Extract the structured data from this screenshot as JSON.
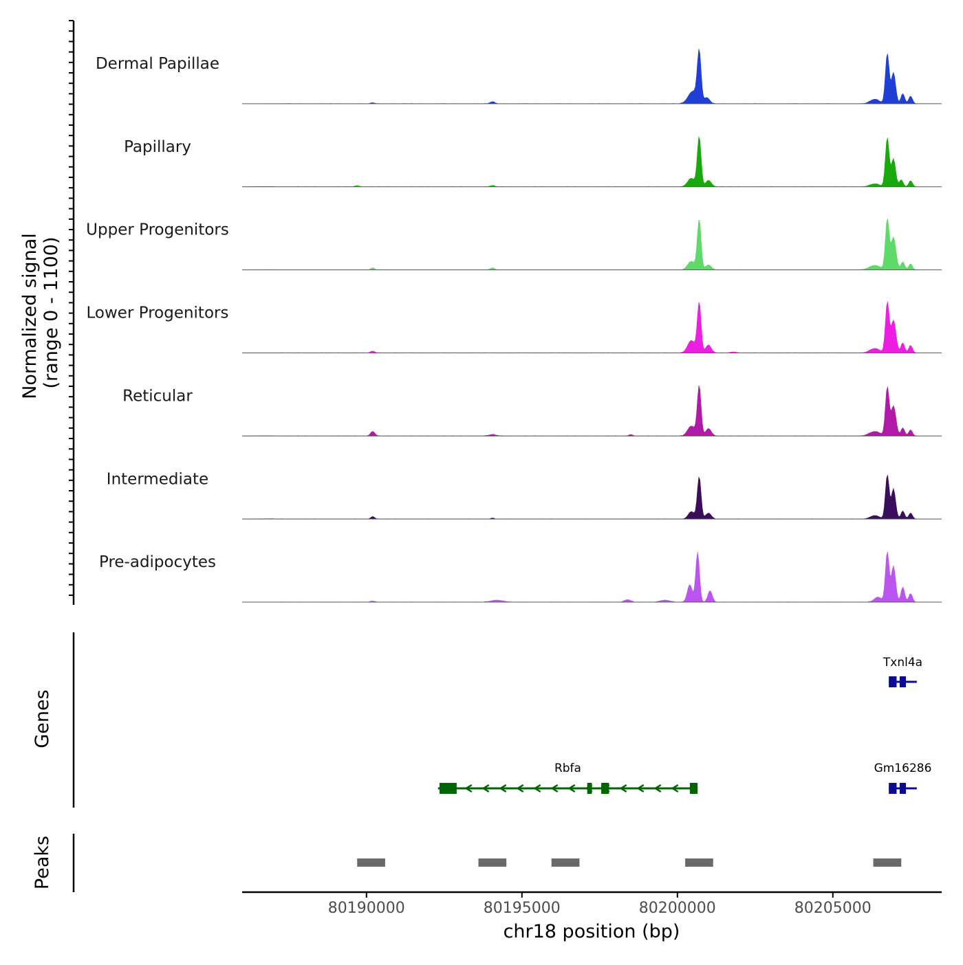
{
  "chart_data": {
    "type": "area",
    "title": "",
    "chromosome": "chr18",
    "xlabel": "chr18 position (bp)",
    "ylabel_line1": "Normalized signal",
    "ylabel_line2": "(range 0 - 1100)",
    "xlim": [
      80186000,
      80208500
    ],
    "ylim": [
      0,
      1100
    ],
    "x_ticks": [
      80190000,
      80195000,
      80200000,
      80205000
    ],
    "x_tick_labels": [
      "80190000",
      "80195000",
      "80200000",
      "80205000"
    ],
    "series": [
      {
        "name": "Dermal Papillae",
        "color": "#1f3fd6",
        "peaks": [
          [
            80200700,
            1000,
            60
          ],
          [
            80200500,
            250,
            150
          ],
          [
            80200950,
            120,
            90
          ],
          [
            80206750,
            1000,
            60
          ],
          [
            80206950,
            620,
            70
          ],
          [
            80207250,
            200,
            60
          ],
          [
            80207500,
            150,
            60
          ],
          [
            80206350,
            90,
            150
          ],
          [
            80194050,
            40,
            80
          ],
          [
            80190200,
            20,
            60
          ]
        ]
      },
      {
        "name": "Papillary",
        "color": "#19a80e",
        "peaks": [
          [
            80200700,
            1000,
            60
          ],
          [
            80200450,
            170,
            120
          ],
          [
            80201000,
            130,
            90
          ],
          [
            80206750,
            980,
            60
          ],
          [
            80206950,
            560,
            70
          ],
          [
            80207200,
            140,
            60
          ],
          [
            80207500,
            120,
            60
          ],
          [
            80206350,
            60,
            160
          ],
          [
            80194050,
            25,
            80
          ],
          [
            80189700,
            20,
            80
          ]
        ]
      },
      {
        "name": "Upper Progenitors",
        "color": "#5fd96a",
        "peaks": [
          [
            80200700,
            1000,
            60
          ],
          [
            80200450,
            170,
            120
          ],
          [
            80201000,
            100,
            90
          ],
          [
            80206750,
            1000,
            60
          ],
          [
            80206950,
            650,
            80
          ],
          [
            80207250,
            160,
            60
          ],
          [
            80207500,
            120,
            60
          ],
          [
            80206350,
            90,
            180
          ],
          [
            80190200,
            40,
            60
          ],
          [
            80194050,
            40,
            70
          ]
        ]
      },
      {
        "name": "Lower Progenitors",
        "color": "#ec1fe0",
        "peaks": [
          [
            80200700,
            1000,
            60
          ],
          [
            80200450,
            250,
            120
          ],
          [
            80201000,
            160,
            90
          ],
          [
            80206750,
            1000,
            60
          ],
          [
            80206950,
            650,
            80
          ],
          [
            80207250,
            200,
            60
          ],
          [
            80207500,
            150,
            60
          ],
          [
            80206350,
            90,
            160
          ],
          [
            80190200,
            35,
            70
          ],
          [
            80201800,
            20,
            100
          ]
        ]
      },
      {
        "name": "Reticular",
        "color": "#b01aa7",
        "peaks": [
          [
            80200700,
            1000,
            60
          ],
          [
            80200450,
            200,
            120
          ],
          [
            80201000,
            150,
            90
          ],
          [
            80206750,
            960,
            60
          ],
          [
            80206950,
            600,
            80
          ],
          [
            80207250,
            160,
            60
          ],
          [
            80207500,
            120,
            60
          ],
          [
            80206350,
            90,
            180
          ],
          [
            80190200,
            90,
            70
          ],
          [
            80194050,
            30,
            120
          ],
          [
            80198500,
            30,
            60
          ]
        ]
      },
      {
        "name": "Intermediate",
        "color": "#3b0d5c",
        "peaks": [
          [
            80200700,
            850,
            60
          ],
          [
            80200450,
            150,
            100
          ],
          [
            80201000,
            120,
            90
          ],
          [
            80206750,
            880,
            60
          ],
          [
            80206950,
            600,
            70
          ],
          [
            80207250,
            160,
            60
          ],
          [
            80207500,
            120,
            60
          ],
          [
            80206350,
            70,
            150
          ],
          [
            80190200,
            50,
            60
          ],
          [
            80194050,
            20,
            60
          ]
        ]
      },
      {
        "name": "Pre-adipocytes",
        "color": "#bb55f0",
        "peaks": [
          [
            80200650,
            1000,
            60
          ],
          [
            80200400,
            350,
            80
          ],
          [
            80201050,
            230,
            70
          ],
          [
            80206750,
            1000,
            60
          ],
          [
            80206950,
            720,
            70
          ],
          [
            80207250,
            300,
            60
          ],
          [
            80207500,
            170,
            60
          ],
          [
            80206450,
            100,
            120
          ],
          [
            80198400,
            50,
            100
          ],
          [
            80194200,
            40,
            200
          ],
          [
            80199600,
            40,
            160
          ],
          [
            80190200,
            20,
            80
          ]
        ]
      }
    ],
    "genes": [
      {
        "name": "Txnl4a",
        "color": "#0b0b8f",
        "strand": "+",
        "start": 80206800,
        "end": 80207700,
        "exons": [
          [
            80206800,
            80207050
          ],
          [
            80207150,
            80207350
          ]
        ]
      },
      {
        "name": "Gm16286",
        "color": "#0b0b8f",
        "strand": "+",
        "start": 80206800,
        "end": 80207700,
        "exons": [
          [
            80206800,
            80207050
          ],
          [
            80207150,
            80207350
          ]
        ]
      },
      {
        "name": "Rbfa",
        "color": "#006400",
        "strand": "-",
        "start": 80192300,
        "end": 80200650,
        "exons": [
          [
            80192350,
            80192900
          ],
          [
            80197100,
            80197250
          ],
          [
            80197550,
            80197800
          ],
          [
            80200400,
            80200650
          ]
        ]
      }
    ],
    "peaks_track": [
      [
        80189700,
        80190600
      ],
      [
        80193600,
        80194500
      ],
      [
        80195950,
        80196850
      ],
      [
        80200250,
        80201150
      ],
      [
        80206300,
        80207200
      ]
    ],
    "panel_labels": {
      "genes": "Genes",
      "peaks": "Peaks"
    }
  }
}
